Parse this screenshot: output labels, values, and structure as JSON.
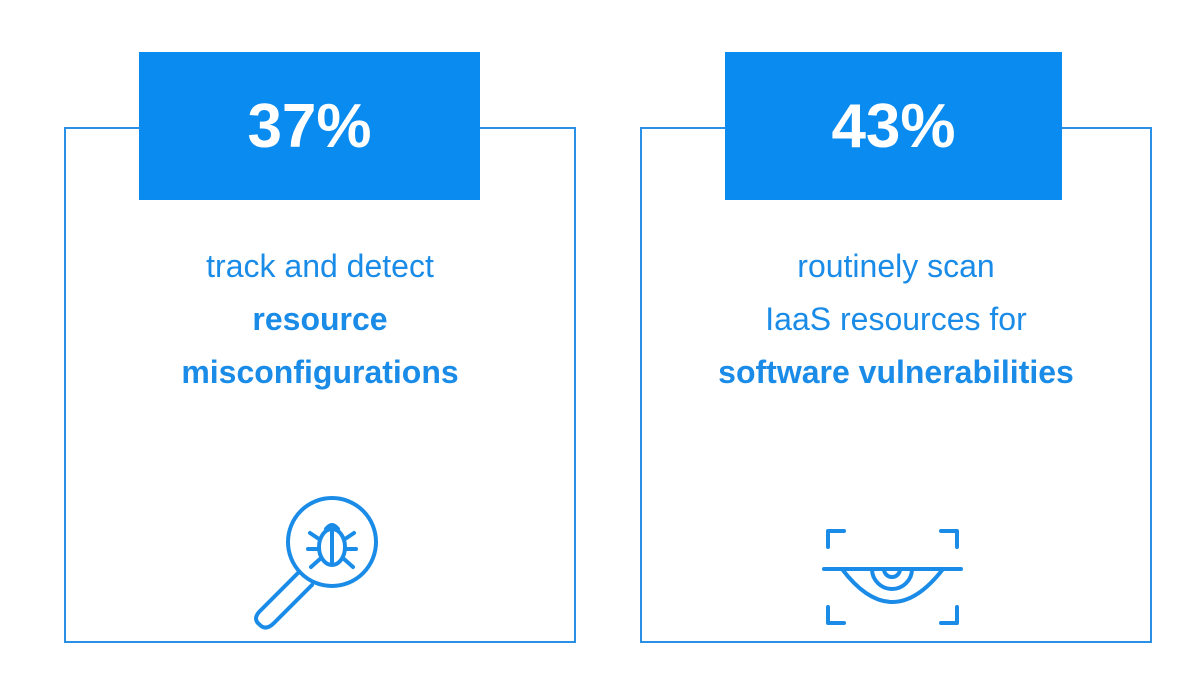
{
  "cards": [
    {
      "stat": "37%",
      "lines": [
        "track and detect"
      ],
      "bold_lines": [
        "resource",
        "misconfigurations"
      ]
    },
    {
      "stat": "43%",
      "lines": [
        "routinely scan",
        "IaaS resources for"
      ],
      "bold_lines": [
        "software vulnerabilities"
      ]
    }
  ]
}
